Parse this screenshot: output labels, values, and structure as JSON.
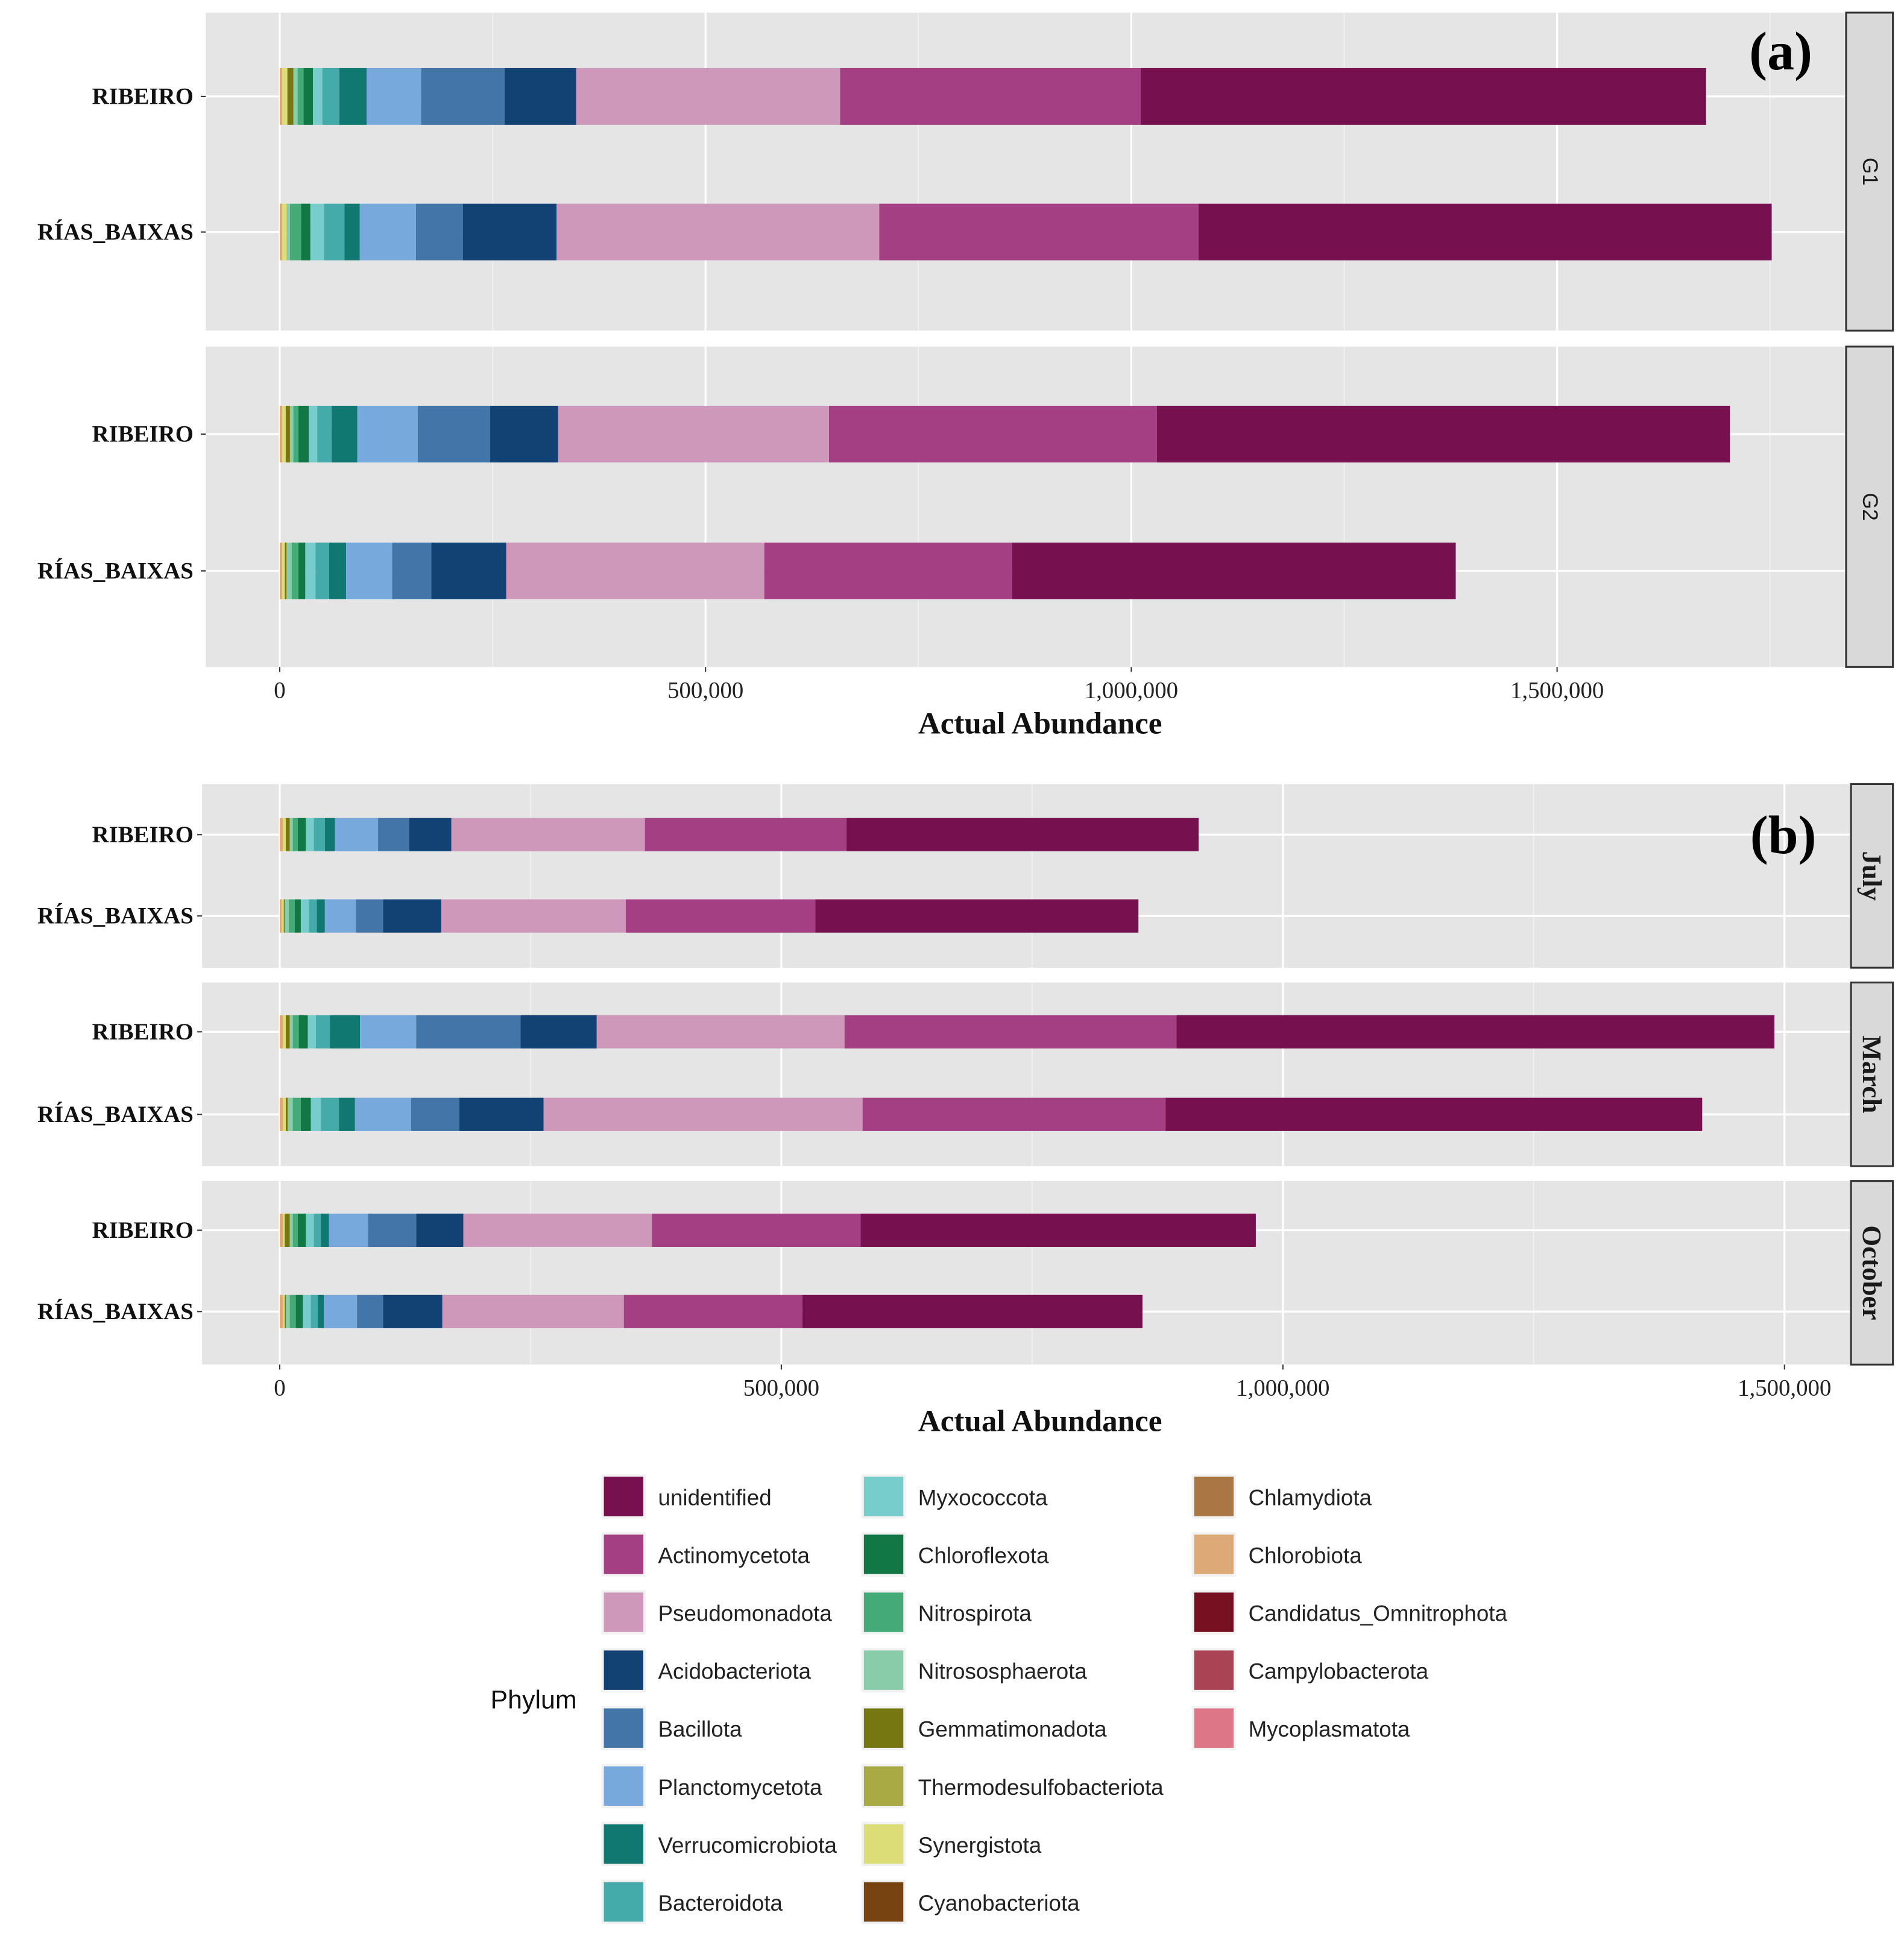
{
  "chart_data": {
    "type": "bar",
    "orientation": "horizontal-stacked",
    "legend": {
      "title": "Phylum",
      "placement": "bottom"
    },
    "phyla": [
      {
        "name": "unidentified",
        "color": "#76104f"
      },
      {
        "name": "Actinomycetota",
        "color": "#a43f84"
      },
      {
        "name": "Pseudomonadota",
        "color": "#ce98ba"
      },
      {
        "name": "Acidobacteriota",
        "color": "#124173"
      },
      {
        "name": "Bacillota",
        "color": "#4475a8"
      },
      {
        "name": "Planctomycetota",
        "color": "#77a9dd"
      },
      {
        "name": "Verrucomicrobiota",
        "color": "#117771"
      },
      {
        "name": "Bacteroidota",
        "color": "#44aaaa"
      },
      {
        "name": "Myxococcota",
        "color": "#77cccc"
      },
      {
        "name": "Chloroflexota",
        "color": "#117744"
      },
      {
        "name": "Nitrospirota",
        "color": "#44aa77"
      },
      {
        "name": "Nitrososphaerota",
        "color": "#88ccaa"
      },
      {
        "name": "Gemmatimonadota",
        "color": "#777711"
      },
      {
        "name": "Thermodesulfobacteriota",
        "color": "#aaaa44"
      },
      {
        "name": "Synergistota",
        "color": "#dddd77"
      },
      {
        "name": "Cyanobacteriota",
        "color": "#774411"
      },
      {
        "name": "Chlamydiota",
        "color": "#aa7744"
      },
      {
        "name": "Chlorobiota",
        "color": "#ddaa77"
      },
      {
        "name": "Candidatus_Omnitrophota",
        "color": "#771122"
      },
      {
        "name": "Campylobacterota",
        "color": "#aa4455"
      },
      {
        "name": "Mycoplasmatota",
        "color": "#dd7788"
      }
    ],
    "stack_order": [
      "Chlorobiota",
      "Synergistota",
      "Gemmatimonadota",
      "Nitrososphaerota",
      "Nitrospirota",
      "Chloroflexota",
      "Myxococcota",
      "Bacteroidota",
      "Verrucomicrobiota",
      "Planctomycetota",
      "Bacillota",
      "Acidobacteriota",
      "Pseudomonadota",
      "Actinomycetota",
      "unidentified"
    ],
    "value_unit": "thousands of reads",
    "panels": [
      {
        "label": "(a)",
        "xlabel": "Actual Abundance",
        "xlim": [
          0,
          1800000
        ],
        "xticks": [
          0,
          500000,
          1000000,
          1500000
        ],
        "xtick_labels": [
          "0",
          "500,000",
          "1,000,000",
          "1,500,000"
        ],
        "facets": [
          {
            "name": "G1",
            "rows": [
              {
                "label": "RIBEIRO",
                "values": [
                  3,
                  6,
                  7,
                  5,
                  7,
                  11,
                  11,
                  20,
                  32,
                  64,
                  98,
                  84,
                  310,
                  353,
                  664
                ]
              },
              {
                "label": "RÍAS_BAIXAS",
                "values": [
                  3,
                  5,
                  0,
                  4,
                  13,
                  11,
                  16,
                  24,
                  18,
                  66,
                  55,
                  110,
                  379,
                  375,
                  673
                ]
              }
            ]
          },
          {
            "name": "G2",
            "rows": [
              {
                "label": "RIBEIRO",
                "values": [
                  3,
                  4,
                  5,
                  4,
                  6,
                  12,
                  10,
                  17,
                  30,
                  71,
                  85,
                  80,
                  318,
                  385,
                  673
                ]
              },
              {
                "label": "RÍAS_BAIXAS",
                "values": [
                  3,
                  3,
                  2,
                  6,
                  8,
                  8,
                  12,
                  16,
                  20,
                  54,
                  46,
                  88,
                  303,
                  291,
                  521
                ]
              }
            ]
          }
        ]
      },
      {
        "label": "(b)",
        "xlabel": "Actual Abundance",
        "xlim": [
          0,
          1560000
        ],
        "xticks": [
          0,
          500000,
          1000000,
          1500000
        ],
        "xtick_labels": [
          "0",
          "500,000",
          "1,000,000",
          "1,500,000"
        ],
        "facets": [
          {
            "name": "July",
            "rows": [
              {
                "label": "RIBEIRO",
                "values": [
                  3,
                  3,
                  4,
                  3,
                  5,
                  8,
                  8,
                  11,
                  10,
                  43,
                  31,
                  42,
                  193,
                  201,
                  351
                ]
              },
              {
                "label": "RÍAS_BAIXAS",
                "values": [
                  2,
                  2,
                  1,
                  4,
                  6,
                  6,
                  8,
                  8,
                  8,
                  31,
                  27,
                  58,
                  184,
                  189,
                  322
                ]
              }
            ]
          },
          {
            "name": "March",
            "rows": [
              {
                "label": "RIBEIRO",
                "values": [
                  3,
                  3,
                  4,
                  3,
                  6,
                  9,
                  8,
                  14,
                  30,
                  56,
                  104,
                  76,
                  247,
                  331,
                  596
                ]
              },
              {
                "label": "RÍAS_BAIXAS",
                "values": [
                  3,
                  3,
                  2,
                  5,
                  8,
                  10,
                  10,
                  18,
                  16,
                  56,
                  48,
                  84,
                  318,
                  302,
                  535
                ]
              }
            ]
          },
          {
            "name": "October",
            "rows": [
              {
                "label": "RIBEIRO",
                "values": [
                  3,
                  2,
                  5,
                  3,
                  5,
                  8,
                  8,
                  7,
                  8,
                  39,
                  48,
                  47,
                  188,
                  208,
                  394
                ]
              },
              {
                "label": "RÍAS_BAIXAS",
                "values": [
                  3,
                  2,
                  1,
                  4,
                  6,
                  7,
                  8,
                  7,
                  6,
                  33,
                  26,
                  59,
                  181,
                  178,
                  339
                ]
              }
            ]
          }
        ]
      }
    ]
  }
}
